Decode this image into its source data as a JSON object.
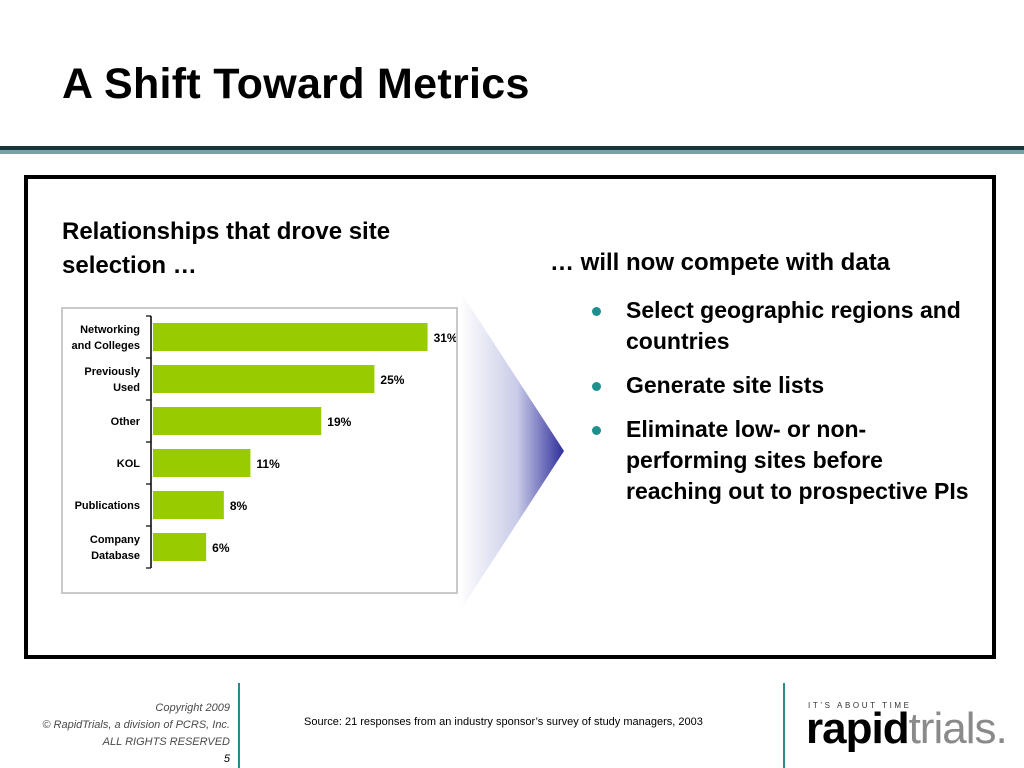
{
  "slide": {
    "title": "A Shift Toward Metrics"
  },
  "left": {
    "heading": "Relationships that drove site selection …"
  },
  "right": {
    "heading": "… will now compete with data",
    "bullets": [
      "Select geographic regions and countries",
      "Generate site lists",
      "Eliminate low- or non-performing sites before reaching out to prospective PIs"
    ]
  },
  "chart_data": {
    "type": "bar",
    "orientation": "horizontal",
    "categories": [
      [
        "Networking",
        "and Colleges"
      ],
      [
        "Previously",
        "Used"
      ],
      [
        "Other"
      ],
      [
        "KOL"
      ],
      [
        "Publications"
      ],
      [
        "Company",
        "Database"
      ]
    ],
    "values": [
      31,
      25,
      19,
      11,
      8,
      6
    ],
    "value_labels": [
      "31%",
      "25%",
      "19%",
      "11%",
      "8%",
      "6%"
    ],
    "xlim": [
      0,
      35
    ],
    "grid": false,
    "bar_color": "#99cc00"
  },
  "footer": {
    "copyright_lines": [
      "Copyright 2009",
      "© RapidTrials, a division of PCRS, Inc.",
      "ALL RIGHTS RESERVED"
    ],
    "page_number": "5",
    "source": "Source: 21 responses from an industry sponsor’s survey of study managers, 2003",
    "brand_tagline": "IT’S ABOUT TIME",
    "brand_rapid": "rapid",
    "brand_trials": "trials."
  },
  "colors": {
    "accent_teal": "#1d8f8f",
    "arrow_blue": "#2e2e9a",
    "bar_green": "#99cc00"
  }
}
